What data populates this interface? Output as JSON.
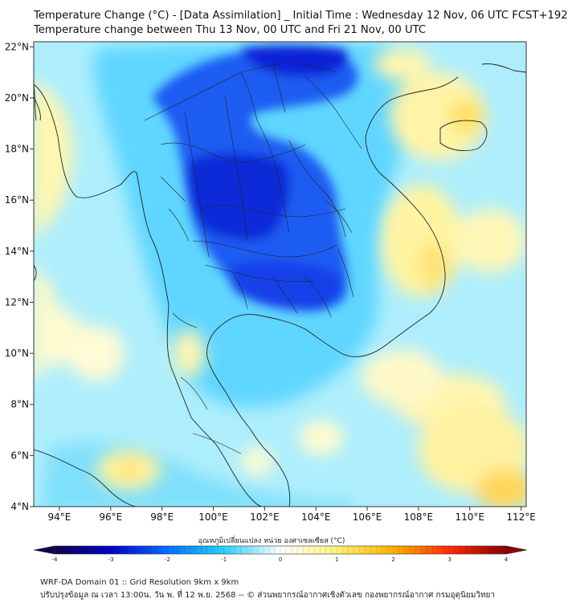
{
  "title_line1": "Temperature Change (°C) - [Data Assimilation] _ Initial Time : Wednesday 12 Nov, 06 UTC FCST+192",
  "title_line2": "Temperature change between Thu 13 Nov, 00 UTC and Fri 21 Nov, 00 UTC",
  "map": {
    "lon_range": [
      93,
      112.2
    ],
    "lat_range": [
      4,
      22.2
    ],
    "lon_ticks": [
      "94°E",
      "96°E",
      "98°E",
      "100°E",
      "102°E",
      "104°E",
      "106°E",
      "108°E",
      "110°E",
      "112°E"
    ],
    "lat_ticks": [
      "22°N",
      "20°N",
      "18°N",
      "16°N",
      "14°N",
      "12°N",
      "10°N",
      "8°N",
      "6°N",
      "4°N"
    ]
  },
  "colorbar": {
    "title": "อุณหภูมิเปลี่ยนแปลง หน่วย องศาเซลเซียส (°C)",
    "ticks": [
      "-4",
      "-3",
      "-2",
      "-1",
      "0",
      "1",
      "2",
      "3",
      "4"
    ],
    "min": -4,
    "max": 4,
    "colors": [
      "#12004d",
      "#0000c8",
      "#0070ff",
      "#28d2ff",
      "#ffffff",
      "#fff27a",
      "#ffb400",
      "#ff2a00",
      "#8c0000"
    ]
  },
  "footer_line1": "WRF-DA Domain 01 :: Grid Resolution 9km x 9km",
  "footer_line2": "ปรับปรุงข้อมูล ณ เวลา 13:00น. วัน พ. ที่ 12 พ.ย. 2568 -- © ส่วนพยากรณ์อากาศเชิงตัวเลข กองพยากรณ์อากาศ กรมอุตุนิยมวิทยา"
}
